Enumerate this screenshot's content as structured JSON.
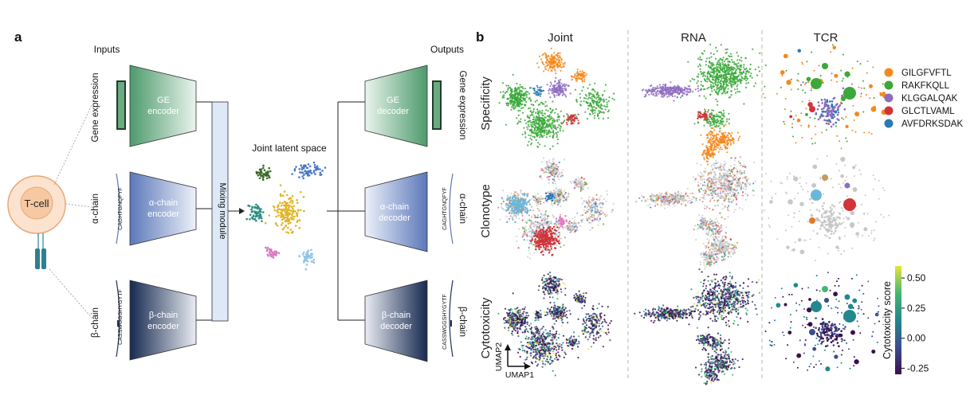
{
  "panel_a": {
    "label": "a",
    "inputs_title": "Inputs",
    "outputs_title": "Outputs",
    "tcell_label": "T-cell",
    "input_rows": {
      "ge": "Gene expression",
      "alpha": "α-chain",
      "beta": "β-chain"
    },
    "output_rows": {
      "ge": "Gene expression",
      "alpha": "α-chain",
      "beta": "β-chain"
    },
    "alpha_sequence": "CAGHTGNQFYF",
    "beta_sequence": "CASSWGGSHYGYTF",
    "encoders": {
      "ge": [
        "GE",
        "encoder"
      ],
      "alpha": [
        "α-chain",
        "encoder"
      ],
      "beta": [
        "β-chain",
        "encoder"
      ]
    },
    "decoders": {
      "ge": [
        "GE",
        "decoder"
      ],
      "alpha": [
        "α-chain",
        "decoder"
      ],
      "beta": [
        "β-chain",
        "decoder"
      ]
    },
    "mixing_module": "Mixing module",
    "joint_latent_space": "Joint latent space",
    "colors": {
      "ge": "#5fa37b",
      "alpha": "#6a86c4",
      "beta": "#1d3160",
      "tcell_fill": "#fbe3cf",
      "tcell_edge": "#e8a878",
      "mixing_fill": "#dde9f7",
      "receptor": "#2e7f8f"
    },
    "latent_clusters": [
      {
        "color": "#3d6b2a"
      },
      {
        "color": "#4b78c6"
      },
      {
        "color": "#2a8f82"
      },
      {
        "color": "#e0b52a"
      },
      {
        "color": "#d77bc0"
      },
      {
        "color": "#8ec3e8"
      }
    ]
  },
  "panel_b": {
    "label": "b",
    "columns": [
      "Joint",
      "RNA",
      "TCR"
    ],
    "rows": [
      "Specificity",
      "Clonotype",
      "Cytotoxicity"
    ],
    "axis_x": "UMAP1",
    "axis_y": "UMAP2",
    "legend": [
      {
        "label": "GILGFVFTL",
        "color": "#f38a1e"
      },
      {
        "label": "RAKFKQLL",
        "color": "#3aa83a"
      },
      {
        "label": "KLGGALQAK",
        "color": "#8e6cc0"
      },
      {
        "label": "GLCTLVAML",
        "color": "#d0343a"
      },
      {
        "label": "AVFDRKSDAK",
        "color": "#2b79b5"
      }
    ],
    "colorbar": {
      "title": "Cytotoxicity score",
      "ticks": [
        "0.50",
        "0.25",
        "0.00",
        "-0.25"
      ],
      "tick_values": [
        0.5,
        0.25,
        0.0,
        -0.25
      ],
      "min": -0.3,
      "max": 0.6
    },
    "clonotype_palette": [
      "#d0343a",
      "#6ab8d8",
      "#c79a5c",
      "#8e6cc0",
      "#e07fc0",
      "#3aa83a",
      "#e07b2a",
      "#2b79b5",
      "#c8c8c8"
    ]
  }
}
